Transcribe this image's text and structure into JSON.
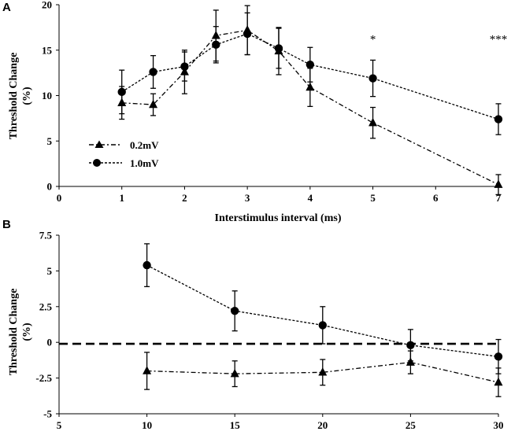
{
  "chart_data": [
    {
      "panel": "A",
      "type": "line",
      "xlabel": "Interstimulus interval (ms)",
      "ylabel": [
        "Threshold Change",
        "(%)"
      ],
      "xlim": [
        0,
        7
      ],
      "ylim": [
        0,
        20
      ],
      "xticks": [
        0,
        1,
        2,
        3,
        4,
        5,
        6,
        7
      ],
      "xtick_labels": [
        "0",
        "1",
        "2",
        "3",
        "4",
        "5",
        "6",
        "7"
      ],
      "yticks": [
        0,
        5,
        10,
        15,
        20
      ],
      "ytick_labels": [
        "0",
        "5",
        "10",
        "15",
        "20"
      ],
      "legend_position": "left",
      "series": [
        {
          "name": "0.2mV",
          "marker": "triangle",
          "line": "dash-dot",
          "points": [
            {
              "x": 1,
              "y": 9.2,
              "err": 1.8
            },
            {
              "x": 1.5,
              "y": 9.0,
              "err": 1.2
            },
            {
              "x": 2,
              "y": 12.6,
              "err": 2.4
            },
            {
              "x": 2.5,
              "y": 16.6,
              "err": 2.8
            },
            {
              "x": 3,
              "y": 17.2,
              "err": 2.7
            },
            {
              "x": 3.5,
              "y": 14.9,
              "err": 2.6
            },
            {
              "x": 4,
              "y": 10.9,
              "err": 2.1
            },
            {
              "x": 5,
              "y": 7.0,
              "err": 1.7
            },
            {
              "x": 7,
              "y": 0.2,
              "err": 1.1
            }
          ]
        },
        {
          "name": "1.0mV",
          "marker": "circle",
          "line": "dashed",
          "points": [
            {
              "x": 1,
              "y": 10.4,
              "err": 2.4
            },
            {
              "x": 1.5,
              "y": 12.6,
              "err": 1.8
            },
            {
              "x": 2,
              "y": 13.2,
              "err": 1.6
            },
            {
              "x": 2.5,
              "y": 15.6,
              "err": 2.0
            },
            {
              "x": 3,
              "y": 16.8,
              "err": 2.3
            },
            {
              "x": 3.5,
              "y": 15.2,
              "err": 2.2
            },
            {
              "x": 4,
              "y": 13.4,
              "err": 1.9
            },
            {
              "x": 5,
              "y": 11.9,
              "err": 2.0
            },
            {
              "x": 7,
              "y": 7.4,
              "err": 1.7
            }
          ]
        }
      ],
      "annotations": [
        {
          "x": 5,
          "y": 15.8,
          "text": "*"
        },
        {
          "x": 7,
          "y": 15.8,
          "text": "***"
        }
      ]
    },
    {
      "panel": "B",
      "type": "line",
      "xlabel": "",
      "ylabel": [
        "Threshold Change",
        "(%)"
      ],
      "xlim": [
        5,
        30
      ],
      "ylim": [
        -5,
        7.5
      ],
      "xticks": [
        5,
        10,
        15,
        20,
        25,
        30
      ],
      "xtick_labels": [
        "5",
        "10",
        "15",
        "20",
        "25",
        "30"
      ],
      "yticks": [
        -5,
        -2.5,
        0,
        2.5,
        5,
        7.5
      ],
      "ytick_labels": [
        "-5",
        "-2.5",
        "0",
        "2.5",
        "5",
        "7.5"
      ],
      "reference_line": -0.1,
      "series": [
        {
          "name": "1.0mV",
          "marker": "circle",
          "line": "dashed",
          "points": [
            {
              "x": 10,
              "y": 5.4,
              "err": 1.5
            },
            {
              "x": 15,
              "y": 2.2,
              "err": 1.4
            },
            {
              "x": 20,
              "y": 1.2,
              "err": 1.3
            },
            {
              "x": 25,
              "y": -0.2,
              "err": 1.1
            },
            {
              "x": 30,
              "y": -1.0,
              "err": 1.2
            }
          ]
        },
        {
          "name": "0.2mV",
          "marker": "triangle",
          "line": "dash-dot",
          "points": [
            {
              "x": 10,
              "y": -2.0,
              "err": 1.3
            },
            {
              "x": 15,
              "y": -2.2,
              "err": 0.9
            },
            {
              "x": 20,
              "y": -2.1,
              "err": 0.9
            },
            {
              "x": 25,
              "y": -1.4,
              "err": 0.8
            },
            {
              "x": 30,
              "y": -2.8,
              "err": 1.0
            }
          ]
        }
      ]
    }
  ]
}
